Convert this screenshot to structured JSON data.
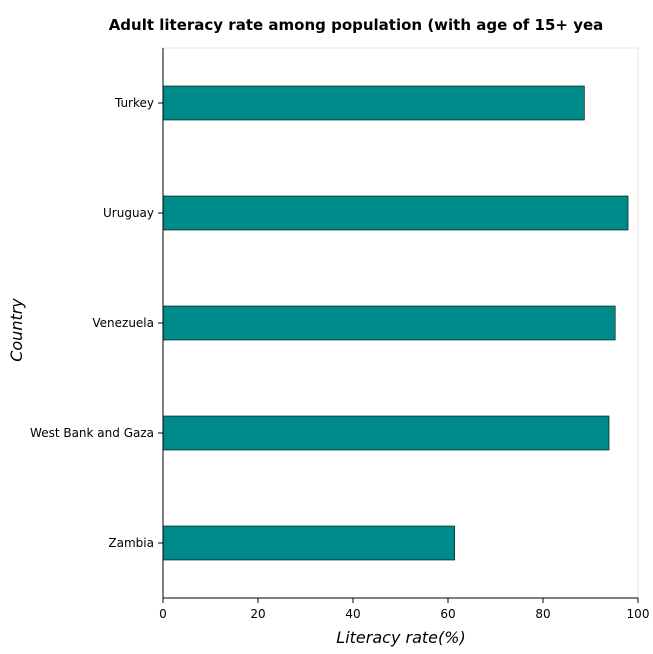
{
  "chart_data": {
    "type": "bar",
    "orientation": "horizontal",
    "title": "Adult literacy rate among population (with age of 15+ yea",
    "xlabel": "Literacy rate(%)",
    "ylabel": "Country",
    "categories": [
      "Turkey",
      "Uruguay",
      "Venezuela",
      "West Bank and Gaza",
      "Zambia"
    ],
    "values": [
      88.7,
      97.9,
      95.2,
      93.9,
      61.4
    ],
    "xlim": [
      0,
      100
    ],
    "xticks": [
      0,
      20,
      40,
      60,
      80,
      100
    ],
    "bar_color": "#008b8b",
    "grid": false,
    "legend": "none"
  }
}
